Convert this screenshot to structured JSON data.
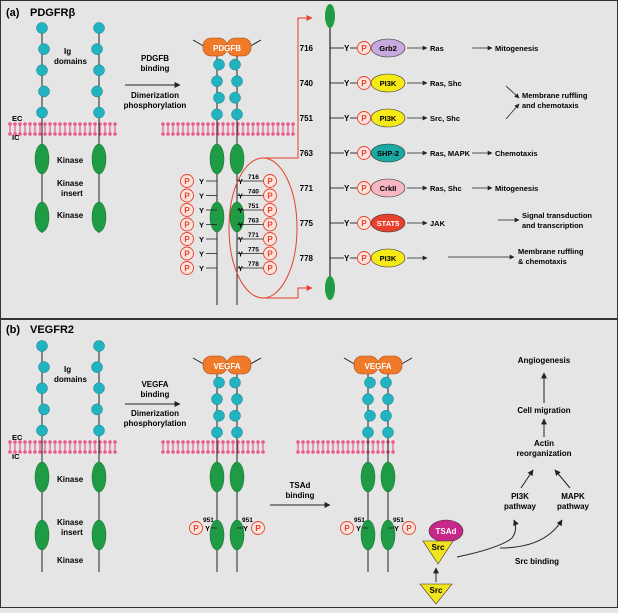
{
  "panel_a": {
    "tag": "(a)",
    "title": "PDGFRβ",
    "ig_label": [
      "Ig",
      "domains"
    ],
    "ec": "EC",
    "ic": "IC",
    "kinase": "Kinase",
    "kinase_insert": [
      "Kinase",
      "insert"
    ],
    "kinase2": "Kinase",
    "arrow_text": [
      "PDGFB",
      "binding",
      "Dimerization",
      "phosphorylation"
    ],
    "ligand": "PDGFB",
    "p": "P",
    "y": "Y",
    "residue_numbers": [
      "716",
      "740",
      "751",
      "763",
      "771",
      "775",
      "778"
    ],
    "pathways": [
      {
        "site": "716",
        "adaptor": "Grb2",
        "color": "#c7a9dd",
        "text_color": "#000000",
        "effector": "Ras",
        "outcome": "Mitogenesis"
      },
      {
        "site": "740",
        "adaptor": "PI3K",
        "color": "#f5ea17",
        "text_color": "#000000",
        "effector": "Ras, Shc",
        "outcome": ""
      },
      {
        "site": "751",
        "adaptor": "PI3K",
        "color": "#f5ea17",
        "text_color": "#000000",
        "effector": "Src, Shc",
        "outcome": ""
      },
      {
        "site": "763",
        "adaptor": "SHP-2",
        "color": "#1aa9a3",
        "text_color": "#000000",
        "effector": "Ras, MAPK",
        "outcome": "Chemotaxis"
      },
      {
        "site": "771",
        "adaptor": "CrkII",
        "color": "#f6b6c4",
        "text_color": "#000000",
        "effector": "Ras, Shc",
        "outcome": "Mitogenesis"
      },
      {
        "site": "775",
        "adaptor": "STAT5",
        "color": "#e8402c",
        "text_color": "#ffffff",
        "effector": "JAK",
        "outcome": ""
      },
      {
        "site": "778",
        "adaptor": "PI3K",
        "color": "#f5ea17",
        "text_color": "#000000",
        "effector": "",
        "outcome": ""
      }
    ],
    "outcome_membrane_1": [
      "Membrane ruffling",
      "and chemotaxis"
    ],
    "outcome_signal": [
      "Signal transduction",
      "and transcription"
    ],
    "outcome_membrane_2": [
      "Membrane ruffling",
      "& chemotaxis"
    ]
  },
  "panel_b": {
    "tag": "(b)",
    "title": "VEGFR2",
    "ig_label": [
      "Ig",
      "domains"
    ],
    "ec": "EC",
    "ic": "IC",
    "kinase": "Kinase",
    "kinase_insert": [
      "Kinase",
      "insert"
    ],
    "kinase2": "Kinase",
    "arrow_text": [
      "VEGFA",
      "binding",
      "Dimerization",
      "phosphorylation"
    ],
    "ligand": "VEGFA",
    "site": "951",
    "tsad_arrow_text": [
      "TSAd",
      "binding"
    ],
    "tsad": "TSAd",
    "src": "Src",
    "src_binding": "Src binding",
    "pi3k_pathway": [
      "PI3K",
      "pathway"
    ],
    "mapk_pathway": [
      "MAPK",
      "pathway"
    ],
    "actin": [
      "Actin",
      "reorganization"
    ],
    "cell_migration": "Cell migration",
    "angiogenesis": "Angiogenesis"
  },
  "colors": {
    "teal": "#21b3c0",
    "green": "#1f9a45",
    "orange": "#f07a2a",
    "membrane": "#ea5a8c",
    "phospho": "#e8402c",
    "tsad": "#c8278a",
    "src": "#f1e320"
  }
}
